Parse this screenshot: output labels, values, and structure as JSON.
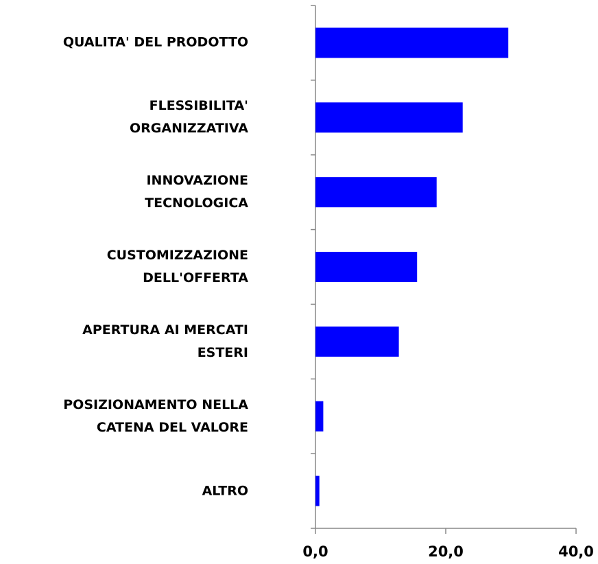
{
  "chart_data": {
    "type": "bar",
    "orientation": "horizontal",
    "categories": [
      "QUALITA' DEL PRODOTTO",
      "FLESSIBILITA' \nORGANIZZATIVA",
      "INNOVAZIONE\nTECNOLOGICA",
      "CUSTOMIZZAZIONE\nDELL'OFFERTA",
      "APERTURA AI MERCATI\nESTERI",
      "POSIZIONAMENTO NELLA\nCATENA DEL VALORE",
      "ALTRO"
    ],
    "values": [
      29.6,
      22.6,
      18.6,
      15.6,
      12.8,
      1.2,
      0.6
    ],
    "color": "#0000ff",
    "xlim": [
      0,
      40
    ],
    "xticks": [
      {
        "value": 0,
        "label": "0,0"
      },
      {
        "value": 20,
        "label": "20,0"
      },
      {
        "value": 40,
        "label": "40,0"
      }
    ],
    "grid": false
  }
}
